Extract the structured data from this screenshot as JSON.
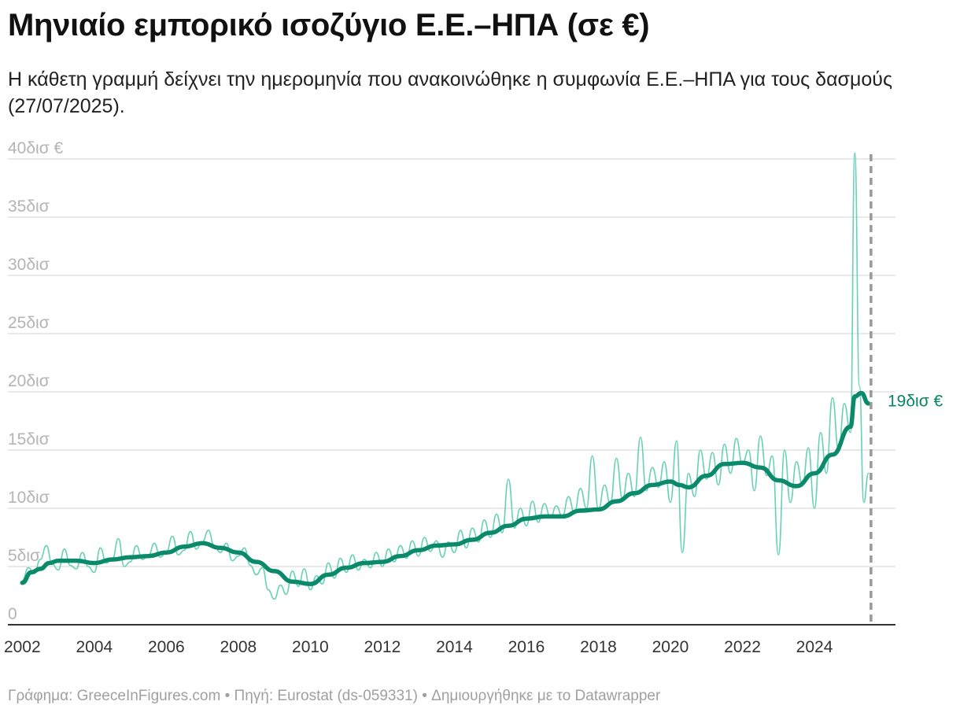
{
  "title": "Μηνιαίο εμπορικό ισοζύγιο Ε.Ε.–ΗΠΑ (σε €)",
  "subtitle": "Η κάθετη γραμμή δείχνει την ημερομηνία που ανακοινώθηκε η συμφωνία Ε.Ε.–ΗΠΑ για τους δασμούς (27/07/2025).",
  "footer": "Γράφημα: GreeceInFigures.com • Πηγή: Eurostat (ds-059331) • Δημιουργήθηκε με το Datawrapper",
  "colors": {
    "monthly": "#66d1b5",
    "average": "#0a8a6b",
    "grid": "#e2e2e2",
    "axis": "#333333",
    "marker": "#999999"
  },
  "chart_data": {
    "type": "line",
    "x_axis": {
      "min": 2001.6,
      "max": 2026.25,
      "ticks": [
        "2002",
        "2004",
        "2006",
        "2008",
        "2010",
        "2012",
        "2014",
        "2016",
        "2018",
        "2020",
        "2022",
        "2024"
      ]
    },
    "y_axis": {
      "min": 0,
      "max": 40,
      "ticks": [
        {
          "value": 0,
          "label": "0"
        },
        {
          "value": 5,
          "label": "5δισ"
        },
        {
          "value": 10,
          "label": "10δισ"
        },
        {
          "value": 15,
          "label": "15δισ"
        },
        {
          "value": 20,
          "label": "20δισ"
        },
        {
          "value": 25,
          "label": "25δισ"
        },
        {
          "value": 30,
          "label": "30δισ"
        },
        {
          "value": 35,
          "label": "35δισ"
        },
        {
          "value": 40,
          "label": "40δισ €"
        }
      ]
    },
    "grid": true,
    "marker_date": 2025.57,
    "end_label": "19δισ €",
    "series": [
      {
        "role": "monthly",
        "points": [
          [
            2002.0,
            3.8
          ],
          [
            2002.17,
            4.9
          ],
          [
            2002.33,
            4.4
          ],
          [
            2002.5,
            5.6
          ],
          [
            2002.67,
            6.8
          ],
          [
            2002.83,
            5.2
          ],
          [
            2003.0,
            4.7
          ],
          [
            2003.17,
            6.5
          ],
          [
            2003.33,
            5.1
          ],
          [
            2003.5,
            4.8
          ],
          [
            2003.67,
            6.2
          ],
          [
            2003.83,
            5.0
          ],
          [
            2004.0,
            4.5
          ],
          [
            2004.17,
            6.6
          ],
          [
            2004.33,
            5.3
          ],
          [
            2004.5,
            5.6
          ],
          [
            2004.67,
            7.4
          ],
          [
            2004.83,
            5.0
          ],
          [
            2005.0,
            5.4
          ],
          [
            2005.17,
            6.8
          ],
          [
            2005.33,
            5.6
          ],
          [
            2005.5,
            5.9
          ],
          [
            2005.67,
            7.0
          ],
          [
            2005.83,
            5.8
          ],
          [
            2006.0,
            6.2
          ],
          [
            2006.17,
            7.6
          ],
          [
            2006.33,
            6.0
          ],
          [
            2006.5,
            6.4
          ],
          [
            2006.67,
            8.0
          ],
          [
            2006.83,
            6.5
          ],
          [
            2007.0,
            7.1
          ],
          [
            2007.17,
            8.1
          ],
          [
            2007.33,
            6.8
          ],
          [
            2007.5,
            6.2
          ],
          [
            2007.67,
            7.0
          ],
          [
            2007.83,
            5.5
          ],
          [
            2008.0,
            5.9
          ],
          [
            2008.17,
            6.6
          ],
          [
            2008.33,
            5.1
          ],
          [
            2008.5,
            4.3
          ],
          [
            2008.67,
            4.9
          ],
          [
            2008.83,
            3.0
          ],
          [
            2009.0,
            2.2
          ],
          [
            2009.17,
            3.4
          ],
          [
            2009.33,
            2.6
          ],
          [
            2009.5,
            4.6
          ],
          [
            2009.67,
            3.3
          ],
          [
            2009.83,
            4.8
          ],
          [
            2010.0,
            3.0
          ],
          [
            2010.17,
            4.2
          ],
          [
            2010.33,
            3.5
          ],
          [
            2010.5,
            5.3
          ],
          [
            2010.67,
            4.0
          ],
          [
            2010.83,
            5.7
          ],
          [
            2011.0,
            4.5
          ],
          [
            2011.17,
            6.0
          ],
          [
            2011.33,
            4.7
          ],
          [
            2011.5,
            5.6
          ],
          [
            2011.67,
            4.9
          ],
          [
            2011.83,
            6.2
          ],
          [
            2012.0,
            5.0
          ],
          [
            2012.17,
            6.5
          ],
          [
            2012.33,
            5.4
          ],
          [
            2012.5,
            6.8
          ],
          [
            2012.67,
            5.7
          ],
          [
            2012.83,
            7.2
          ],
          [
            2013.0,
            5.9
          ],
          [
            2013.17,
            7.5
          ],
          [
            2013.33,
            6.3
          ],
          [
            2013.5,
            7.2
          ],
          [
            2013.67,
            5.8
          ],
          [
            2013.83,
            7.1
          ],
          [
            2014.0,
            6.2
          ],
          [
            2014.17,
            8.1
          ],
          [
            2014.33,
            6.6
          ],
          [
            2014.5,
            8.3
          ],
          [
            2014.67,
            7.1
          ],
          [
            2014.83,
            9.0
          ],
          [
            2015.0,
            7.5
          ],
          [
            2015.17,
            9.5
          ],
          [
            2015.33,
            7.9
          ],
          [
            2015.5,
            12.5
          ],
          [
            2015.67,
            8.3
          ],
          [
            2015.83,
            10.0
          ],
          [
            2016.0,
            8.5
          ],
          [
            2016.17,
            10.6
          ],
          [
            2016.33,
            8.8
          ],
          [
            2016.5,
            10.4
          ],
          [
            2016.67,
            9.2
          ],
          [
            2016.83,
            10.2
          ],
          [
            2017.0,
            9.3
          ],
          [
            2017.17,
            11.0
          ],
          [
            2017.33,
            9.6
          ],
          [
            2017.5,
            11.7
          ],
          [
            2017.67,
            10.0
          ],
          [
            2017.83,
            14.5
          ],
          [
            2018.0,
            9.9
          ],
          [
            2018.17,
            12.0
          ],
          [
            2018.33,
            10.4
          ],
          [
            2018.5,
            14.3
          ],
          [
            2018.67,
            10.8
          ],
          [
            2018.83,
            13.0
          ],
          [
            2019.0,
            11.0
          ],
          [
            2019.17,
            16.1
          ],
          [
            2019.33,
            11.5
          ],
          [
            2019.5,
            13.5
          ],
          [
            2019.67,
            11.8
          ],
          [
            2019.83,
            14.0
          ],
          [
            2020.0,
            10.5
          ],
          [
            2020.17,
            15.8
          ],
          [
            2020.33,
            6.2
          ],
          [
            2020.5,
            13.0
          ],
          [
            2020.67,
            11.0
          ],
          [
            2020.83,
            15.0
          ],
          [
            2021.0,
            12.5
          ],
          [
            2021.17,
            14.8
          ],
          [
            2021.33,
            12.0
          ],
          [
            2021.5,
            15.5
          ],
          [
            2021.67,
            13.0
          ],
          [
            2021.83,
            16.0
          ],
          [
            2022.0,
            13.8
          ],
          [
            2022.17,
            15.0
          ],
          [
            2022.33,
            11.5
          ],
          [
            2022.5,
            16.2
          ],
          [
            2022.67,
            12.8
          ],
          [
            2022.83,
            14.5
          ],
          [
            2023.0,
            6.0
          ],
          [
            2023.17,
            15.0
          ],
          [
            2023.33,
            10.5
          ],
          [
            2023.5,
            14.0
          ],
          [
            2023.67,
            12.0
          ],
          [
            2023.83,
            15.2
          ],
          [
            2024.0,
            10.0
          ],
          [
            2024.17,
            16.5
          ],
          [
            2024.33,
            13.0
          ],
          [
            2024.5,
            19.5
          ],
          [
            2024.67,
            15.0
          ],
          [
            2024.83,
            19.0
          ],
          [
            2025.0,
            16.5
          ],
          [
            2025.12,
            40.5
          ],
          [
            2025.25,
            20.5
          ],
          [
            2025.37,
            10.5
          ],
          [
            2025.5,
            13.0
          ]
        ]
      },
      {
        "role": "average",
        "points": [
          [
            2002.0,
            3.6
          ],
          [
            2002.25,
            4.5
          ],
          [
            2002.5,
            4.8
          ],
          [
            2002.75,
            5.3
          ],
          [
            2003.0,
            5.5
          ],
          [
            2003.5,
            5.5
          ],
          [
            2004.0,
            5.3
          ],
          [
            2004.5,
            5.6
          ],
          [
            2005.0,
            5.8
          ],
          [
            2005.5,
            5.9
          ],
          [
            2006.0,
            6.2
          ],
          [
            2006.5,
            6.7
          ],
          [
            2007.0,
            7.0
          ],
          [
            2007.5,
            6.6
          ],
          [
            2008.0,
            6.2
          ],
          [
            2008.5,
            5.4
          ],
          [
            2009.0,
            4.6
          ],
          [
            2009.5,
            3.7
          ],
          [
            2010.0,
            3.5
          ],
          [
            2010.5,
            4.3
          ],
          [
            2011.0,
            4.9
          ],
          [
            2011.5,
            5.3
          ],
          [
            2012.0,
            5.4
          ],
          [
            2012.5,
            5.9
          ],
          [
            2013.0,
            6.4
          ],
          [
            2013.5,
            6.8
          ],
          [
            2014.0,
            6.9
          ],
          [
            2014.5,
            7.3
          ],
          [
            2015.0,
            7.9
          ],
          [
            2015.5,
            8.5
          ],
          [
            2016.0,
            9.1
          ],
          [
            2016.5,
            9.3
          ],
          [
            2017.0,
            9.3
          ],
          [
            2017.5,
            9.8
          ],
          [
            2018.0,
            9.9
          ],
          [
            2018.5,
            10.6
          ],
          [
            2019.0,
            11.3
          ],
          [
            2019.5,
            12.0
          ],
          [
            2020.0,
            12.3
          ],
          [
            2020.25,
            12.0
          ],
          [
            2020.5,
            11.8
          ],
          [
            2021.0,
            12.8
          ],
          [
            2021.5,
            13.8
          ],
          [
            2022.0,
            13.9
          ],
          [
            2022.5,
            13.5
          ],
          [
            2023.0,
            12.4
          ],
          [
            2023.5,
            11.9
          ],
          [
            2024.0,
            13.0
          ],
          [
            2024.5,
            14.6
          ],
          [
            2025.0,
            17.0
          ],
          [
            2025.12,
            19.6
          ],
          [
            2025.3,
            19.9
          ],
          [
            2025.5,
            19.0
          ]
        ]
      }
    ]
  }
}
